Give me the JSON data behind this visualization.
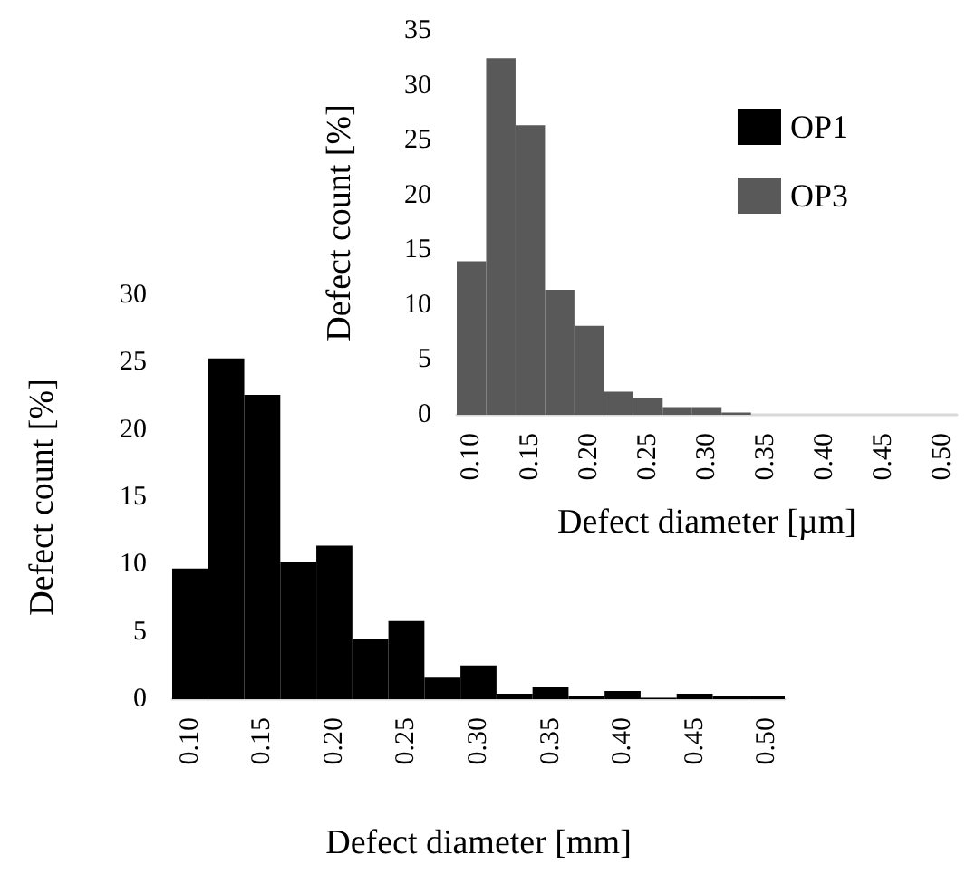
{
  "chart_data": [
    {
      "type": "histogram",
      "xlabel": "Defect diameter [mm]",
      "ylabel": "Defect count [%]",
      "bins": [
        0.0875,
        0.1125,
        0.1375,
        0.1625,
        0.1875,
        0.2125,
        0.2375,
        0.2625,
        0.2875,
        0.3125,
        0.3375,
        0.3625,
        0.3875,
        0.4125,
        0.4375,
        0.4625,
        0.4875,
        0.5125
      ],
      "series": [
        {
          "name": "OP1",
          "color": "#000000",
          "values": [
            9.7,
            25.3,
            22.6,
            10.2,
            11.4,
            4.5,
            5.8,
            1.6,
            2.5,
            0.4,
            0.9,
            0.2,
            0.6,
            0.1,
            0.4,
            0.2,
            0.2
          ]
        }
      ],
      "xlim": [
        0.0875,
        0.5125
      ],
      "xticks": [
        {
          "value": 0.1,
          "label": "0.10"
        },
        {
          "value": 0.15,
          "label": "0.15"
        },
        {
          "value": 0.2,
          "label": "0.20"
        },
        {
          "value": 0.25,
          "label": "0.25"
        },
        {
          "value": 0.3,
          "label": "0.30"
        },
        {
          "value": 0.35,
          "label": "0.35"
        },
        {
          "value": 0.4,
          "label": "0.40"
        },
        {
          "value": 0.45,
          "label": "0.45"
        },
        {
          "value": 0.5,
          "label": "0.50"
        }
      ],
      "ylim": [
        0,
        30
      ],
      "yticks": [
        0,
        5,
        10,
        15,
        20,
        25,
        30
      ],
      "legend": "top right",
      "grid": false
    },
    {
      "type": "histogram",
      "xlabel": "Defect diameter [µm]",
      "ylabel": "Defect count [%]",
      "bins": [
        0.0875,
        0.1125,
        0.1375,
        0.1625,
        0.1875,
        0.2125,
        0.2375,
        0.2625,
        0.2875,
        0.3125,
        0.3375,
        0.3625,
        0.3875,
        0.4125,
        0.4375,
        0.4625,
        0.4875,
        0.5125
      ],
      "series": [
        {
          "name": "OP3",
          "color": "#595959",
          "values": [
            14.0,
            32.5,
            26.4,
            11.4,
            8.1,
            2.1,
            1.5,
            0.7,
            0.7,
            0.2,
            0,
            0,
            0,
            0,
            0,
            0,
            0
          ]
        }
      ],
      "xlim": [
        0.0875,
        0.5125
      ],
      "xticks": [
        {
          "value": 0.1,
          "label": "0.10"
        },
        {
          "value": 0.15,
          "label": "0.15"
        },
        {
          "value": 0.2,
          "label": "0.20"
        },
        {
          "value": 0.25,
          "label": "0.25"
        },
        {
          "value": 0.3,
          "label": "0.30"
        },
        {
          "value": 0.35,
          "label": "0.35"
        },
        {
          "value": 0.4,
          "label": "0.40"
        },
        {
          "value": 0.45,
          "label": "0.45"
        },
        {
          "value": 0.5,
          "label": "0.50"
        }
      ],
      "ylim": [
        0,
        35
      ],
      "yticks": [
        0,
        5,
        10,
        15,
        20,
        25,
        30,
        35
      ],
      "legend": "top right",
      "grid": false
    }
  ]
}
